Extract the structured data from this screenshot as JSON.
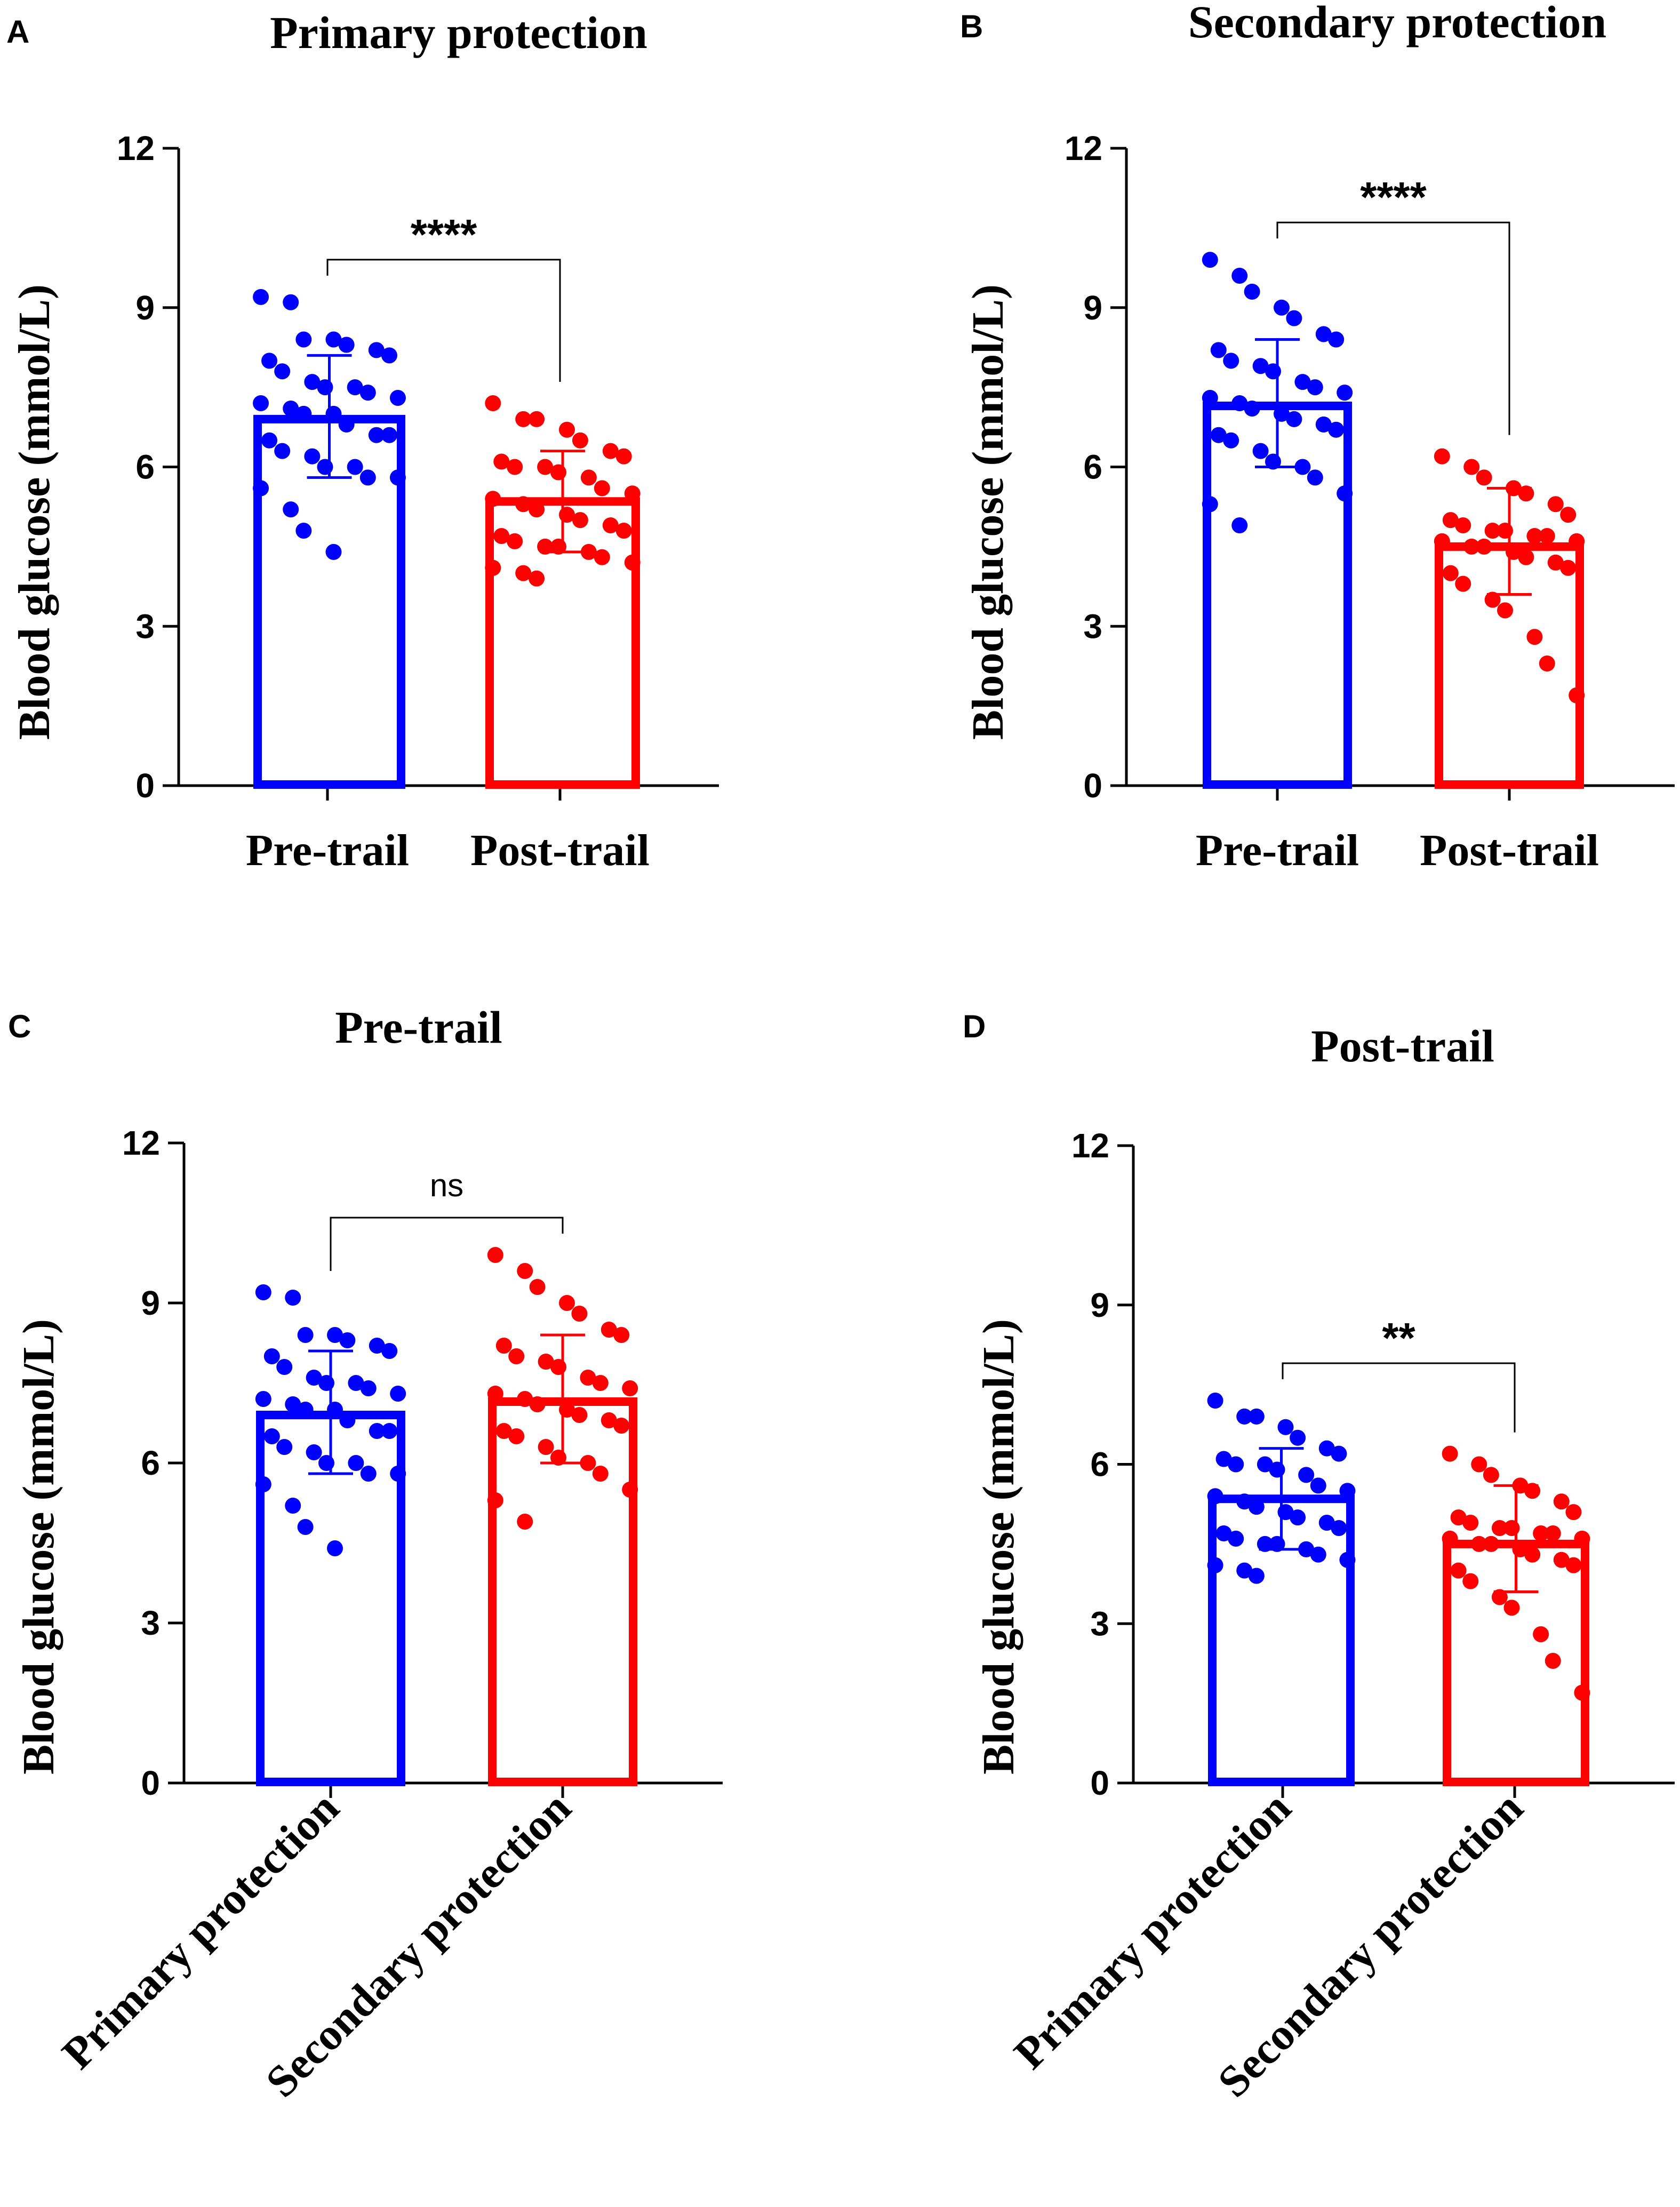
{
  "colors": {
    "blue": "#0000ff",
    "red": "#ff0000",
    "axis": "#000000"
  },
  "chart_data": [
    {
      "panel": "A",
      "type": "bar",
      "title": "Primary protection",
      "ylabel": "Blood glucose (mmol/L)",
      "xlabel": "",
      "ylim": [
        0,
        12
      ],
      "yticks": [
        "0",
        "3",
        "6",
        "9",
        "12"
      ],
      "categories": [
        "Pre-trail",
        "Post-trail"
      ],
      "rotate_labels": false,
      "significance": "****",
      "series": [
        {
          "name": "Pre-trail",
          "color": "blue",
          "mean": 6.9,
          "sd_low": 5.8,
          "sd_high": 8.1,
          "points": [
            9.2,
            9.1,
            8.4,
            8.4,
            8.3,
            8.2,
            8.1,
            8.0,
            7.8,
            7.6,
            7.5,
            7.5,
            7.4,
            7.3,
            7.2,
            7.1,
            7.0,
            7.0,
            6.8,
            6.6,
            6.6,
            6.5,
            6.3,
            6.2,
            6.0,
            6.0,
            5.8,
            5.8,
            5.6,
            5.2,
            4.8,
            4.4
          ]
        },
        {
          "name": "Post-trail",
          "color": "red",
          "mean": 5.35,
          "sd_low": 4.4,
          "sd_high": 6.3,
          "points": [
            7.2,
            6.9,
            6.9,
            6.7,
            6.5,
            6.3,
            6.2,
            6.1,
            6.0,
            6.0,
            5.9,
            5.8,
            5.6,
            5.5,
            5.4,
            5.3,
            5.2,
            5.1,
            5.0,
            4.9,
            4.8,
            4.7,
            4.6,
            4.5,
            4.5,
            4.4,
            4.3,
            4.2,
            4.1,
            4.0,
            3.9
          ]
        }
      ]
    },
    {
      "panel": "B",
      "type": "bar",
      "title": "Secondary protection",
      "ylabel": "Blood glucose (mmol/L)",
      "xlabel": "",
      "ylim": [
        0,
        12
      ],
      "yticks": [
        "0",
        "3",
        "6",
        "9",
        "12"
      ],
      "categories": [
        "Pre-trail",
        "Post-trail"
      ],
      "rotate_labels": false,
      "significance": "****",
      "series": [
        {
          "name": "Pre-trail",
          "color": "blue",
          "mean": 7.15,
          "sd_low": 6.0,
          "sd_high": 8.4,
          "points": [
            9.9,
            9.6,
            9.3,
            9.0,
            8.8,
            8.5,
            8.4,
            8.2,
            8.0,
            7.9,
            7.8,
            7.6,
            7.5,
            7.4,
            7.3,
            7.2,
            7.1,
            7.0,
            6.9,
            6.8,
            6.7,
            6.6,
            6.5,
            6.3,
            6.1,
            6.0,
            5.8,
            5.5,
            5.3,
            4.9
          ]
        },
        {
          "name": "Post-trail",
          "color": "red",
          "mean": 4.5,
          "sd_low": 3.6,
          "sd_high": 5.6,
          "points": [
            6.2,
            6.0,
            5.8,
            5.6,
            5.5,
            5.3,
            5.1,
            5.0,
            4.9,
            4.8,
            4.8,
            4.7,
            4.7,
            4.6,
            4.6,
            4.5,
            4.5,
            4.4,
            4.3,
            4.2,
            4.1,
            4.0,
            3.8,
            3.5,
            3.3,
            2.8,
            2.3,
            1.7
          ]
        }
      ]
    },
    {
      "panel": "C",
      "type": "bar",
      "title": "Pre-trail",
      "ylabel": "Blood glucose (mmol/L)",
      "xlabel": "",
      "ylim": [
        0,
        12
      ],
      "yticks": [
        "0",
        "3",
        "6",
        "9",
        "12"
      ],
      "categories": [
        "Primary protection",
        "Secondary protection"
      ],
      "rotate_labels": true,
      "significance": "ns",
      "series": [
        {
          "name": "Primary protection",
          "color": "blue",
          "mean": 6.9,
          "sd_low": 5.8,
          "sd_high": 8.1,
          "points": [
            9.2,
            9.1,
            8.4,
            8.4,
            8.3,
            8.2,
            8.1,
            8.0,
            7.8,
            7.6,
            7.5,
            7.5,
            7.4,
            7.3,
            7.2,
            7.1,
            7.0,
            7.0,
            6.8,
            6.6,
            6.6,
            6.5,
            6.3,
            6.2,
            6.0,
            6.0,
            5.8,
            5.8,
            5.6,
            5.2,
            4.8,
            4.4
          ]
        },
        {
          "name": "Secondary protection",
          "color": "red",
          "mean": 7.15,
          "sd_low": 6.0,
          "sd_high": 8.4,
          "points": [
            9.9,
            9.6,
            9.3,
            9.0,
            8.8,
            8.5,
            8.4,
            8.2,
            8.0,
            7.9,
            7.8,
            7.6,
            7.5,
            7.4,
            7.3,
            7.2,
            7.1,
            7.0,
            6.9,
            6.8,
            6.7,
            6.6,
            6.5,
            6.3,
            6.1,
            6.0,
            5.8,
            5.5,
            5.3,
            4.9
          ]
        }
      ]
    },
    {
      "panel": "D",
      "type": "bar",
      "title": "Post-trail",
      "ylabel": "Blood glucose (mmol/L)",
      "xlabel": "",
      "ylim": [
        0,
        12
      ],
      "yticks": [
        "0",
        "3",
        "6",
        "9",
        "12"
      ],
      "categories": [
        "Primary protection",
        "Secondary protection"
      ],
      "rotate_labels": true,
      "significance": "**",
      "series": [
        {
          "name": "Primary protection",
          "color": "blue",
          "mean": 5.35,
          "sd_low": 4.4,
          "sd_high": 6.3,
          "points": [
            7.2,
            6.9,
            6.9,
            6.7,
            6.5,
            6.3,
            6.2,
            6.1,
            6.0,
            6.0,
            5.9,
            5.8,
            5.6,
            5.5,
            5.4,
            5.3,
            5.2,
            5.1,
            5.0,
            4.9,
            4.8,
            4.7,
            4.6,
            4.5,
            4.5,
            4.4,
            4.3,
            4.2,
            4.1,
            4.0,
            3.9
          ]
        },
        {
          "name": "Secondary protection",
          "color": "red",
          "mean": 4.5,
          "sd_low": 3.6,
          "sd_high": 5.6,
          "points": [
            6.2,
            6.0,
            5.8,
            5.6,
            5.5,
            5.3,
            5.1,
            5.0,
            4.9,
            4.8,
            4.8,
            4.7,
            4.7,
            4.6,
            4.6,
            4.5,
            4.5,
            4.4,
            4.3,
            4.2,
            4.1,
            4.0,
            3.8,
            3.5,
            3.3,
            2.8,
            2.3,
            1.7
          ]
        }
      ]
    }
  ]
}
